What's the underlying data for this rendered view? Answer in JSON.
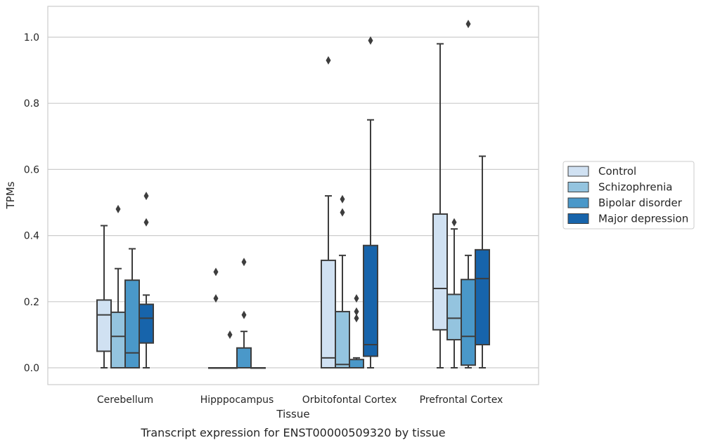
{
  "caption": "Transcript expression for ENST00000509320 by tissue",
  "chart_data": {
    "type": "boxplot",
    "xlabel": "Tissue",
    "ylabel": "TPMs",
    "ylim": [
      -0.05,
      1.09
    ],
    "yticks": [
      "0.0",
      "0.2",
      "0.4",
      "0.6",
      "0.8",
      "1.0"
    ],
    "grid": "horizontal",
    "legend_position": "right",
    "categories": [
      "Cerebellum",
      "Hipppocampus",
      "Orbitofontal Cortex",
      "Prefrontal Cortex"
    ],
    "series": [
      {
        "name": "Control",
        "color": "#d0e1f2",
        "boxes": [
          {
            "whislo": 0.0,
            "q1": 0.05,
            "med": 0.16,
            "q3": 0.205,
            "whishi": 0.43,
            "fliers": []
          },
          {
            "whislo": 0.0,
            "q1": 0.0,
            "med": 0.0,
            "q3": 0.0,
            "whishi": 0.0,
            "fliers": [
              0.21,
              0.29
            ]
          },
          {
            "whislo": 0.0,
            "q1": 0.0,
            "med": 0.03,
            "q3": 0.325,
            "whishi": 0.52,
            "fliers": [
              0.93
            ]
          },
          {
            "whislo": 0.0,
            "q1": 0.115,
            "med": 0.24,
            "q3": 0.465,
            "whishi": 0.98,
            "fliers": []
          }
        ]
      },
      {
        "name": "Schizophrenia",
        "color": "#94c4df",
        "boxes": [
          {
            "whislo": 0.0,
            "q1": 0.0,
            "med": 0.095,
            "q3": 0.168,
            "whishi": 0.3,
            "fliers": [
              0.48
            ]
          },
          {
            "whislo": 0.0,
            "q1": 0.0,
            "med": 0.0,
            "q3": 0.0,
            "whishi": 0.0,
            "fliers": [
              0.1
            ]
          },
          {
            "whislo": 0.0,
            "q1": 0.0,
            "med": 0.01,
            "q3": 0.17,
            "whishi": 0.34,
            "fliers": [
              0.47,
              0.51
            ]
          },
          {
            "whislo": 0.0,
            "q1": 0.085,
            "med": 0.15,
            "q3": 0.222,
            "whishi": 0.42,
            "fliers": [
              0.44
            ]
          }
        ]
      },
      {
        "name": "Bipolar disorder",
        "color": "#4a98c9",
        "boxes": [
          {
            "whislo": 0.0,
            "q1": 0.0,
            "med": 0.045,
            "q3": 0.265,
            "whishi": 0.36,
            "fliers": []
          },
          {
            "whislo": 0.0,
            "q1": 0.0,
            "med": 0.0,
            "q3": 0.06,
            "whishi": 0.11,
            "fliers": [
              0.16,
              0.32
            ]
          },
          {
            "whislo": 0.0,
            "q1": 0.0,
            "med": 0.0,
            "q3": 0.025,
            "whishi": 0.03,
            "fliers": [
              0.15,
              0.17,
              0.21
            ]
          },
          {
            "whislo": 0.0,
            "q1": 0.008,
            "med": 0.095,
            "q3": 0.267,
            "whishi": 0.34,
            "fliers": [
              1.04
            ]
          }
        ]
      },
      {
        "name": "Major depression",
        "color": "#1764ab",
        "boxes": [
          {
            "whislo": 0.0,
            "q1": 0.075,
            "med": 0.15,
            "q3": 0.192,
            "whishi": 0.22,
            "fliers": [
              0.44,
              0.52
            ]
          },
          {
            "whislo": 0.0,
            "q1": 0.0,
            "med": 0.0,
            "q3": 0.0,
            "whishi": 0.0,
            "fliers": []
          },
          {
            "whislo": 0.0,
            "q1": 0.035,
            "med": 0.07,
            "q3": 0.37,
            "whishi": 0.75,
            "fliers": [
              0.99
            ]
          },
          {
            "whislo": 0.0,
            "q1": 0.07,
            "med": 0.27,
            "q3": 0.357,
            "whishi": 0.64,
            "fliers": []
          }
        ]
      }
    ]
  }
}
